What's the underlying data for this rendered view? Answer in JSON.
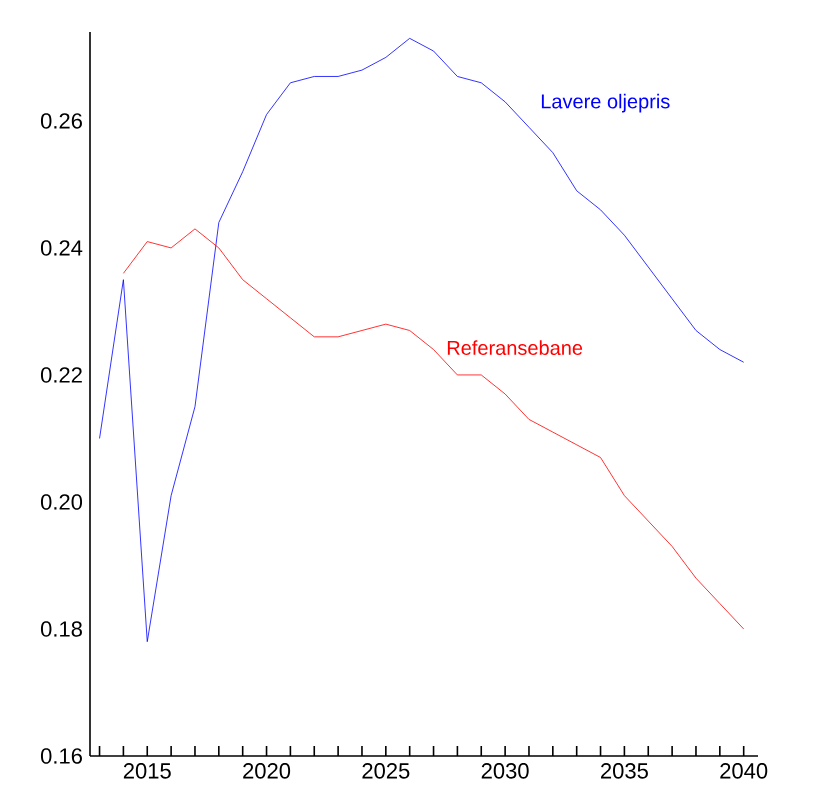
{
  "chart_data": {
    "type": "line",
    "x": [
      2013,
      2014,
      2015,
      2016,
      2017,
      2018,
      2019,
      2020,
      2021,
      2022,
      2023,
      2024,
      2025,
      2026,
      2027,
      2028,
      2029,
      2030,
      2031,
      2032,
      2033,
      2034,
      2035,
      2036,
      2037,
      2038,
      2039,
      2040
    ],
    "series": [
      {
        "name": "Lavere oljepris",
        "color": "#0000ff",
        "values": [
          0.21,
          0.235,
          0.178,
          0.201,
          0.215,
          0.244,
          0.252,
          0.261,
          0.266,
          0.267,
          0.267,
          0.268,
          0.27,
          0.273,
          0.271,
          0.267,
          0.266,
          0.263,
          0.259,
          0.255,
          0.249,
          0.246,
          0.242,
          0.237,
          0.232,
          0.227,
          0.224,
          0.222
        ]
      },
      {
        "name": "Referansebane",
        "color": "#ff0000",
        "values": [
          null,
          0.236,
          0.241,
          0.24,
          0.243,
          0.24,
          0.235,
          0.232,
          0.229,
          0.226,
          0.226,
          0.227,
          0.228,
          0.227,
          0.224,
          0.22,
          0.22,
          0.217,
          0.213,
          0.211,
          0.209,
          0.207,
          0.201,
          0.197,
          0.193,
          0.188,
          0.184,
          0.18
        ]
      }
    ],
    "xlim": [
      2012.6,
      2040.6
    ],
    "ylim": [
      0.16,
      0.274
    ],
    "xticks": [
      {
        "value": 2013,
        "label": null
      },
      {
        "value": 2014,
        "label": null
      },
      2015,
      {
        "value": 2016,
        "label": null
      },
      {
        "value": 2017,
        "label": null
      },
      {
        "value": 2018,
        "label": null
      },
      {
        "value": 2019,
        "label": null
      },
      2020,
      {
        "value": 2021,
        "label": null
      },
      {
        "value": 2022,
        "label": null
      },
      {
        "value": 2023,
        "label": null
      },
      {
        "value": 2024,
        "label": null
      },
      2025,
      {
        "value": 2026,
        "label": null
      },
      {
        "value": 2027,
        "label": null
      },
      {
        "value": 2028,
        "label": null
      },
      {
        "value": 2029,
        "label": null
      },
      2030,
      {
        "value": 2031,
        "label": null
      },
      {
        "value": 2032,
        "label": null
      },
      {
        "value": 2033,
        "label": null
      },
      {
        "value": 2034,
        "label": null
      },
      2035,
      {
        "value": 2036,
        "label": null
      },
      {
        "value": 2037,
        "label": null
      },
      {
        "value": 2038,
        "label": null
      },
      {
        "value": 2039,
        "label": null
      },
      2040
    ],
    "yticks": [
      {
        "value": 0.16,
        "label": "0.16"
      },
      {
        "value": 0.18,
        "label": "0.18"
      },
      {
        "value": 0.2,
        "label": "0.20"
      },
      {
        "value": 0.22,
        "label": "0.22"
      },
      {
        "value": 0.24,
        "label": "0.24"
      },
      {
        "value": 0.26,
        "label": "0.26"
      }
    ],
    "grid": false,
    "legend": false,
    "marker": "none",
    "line_style": "solid"
  }
}
